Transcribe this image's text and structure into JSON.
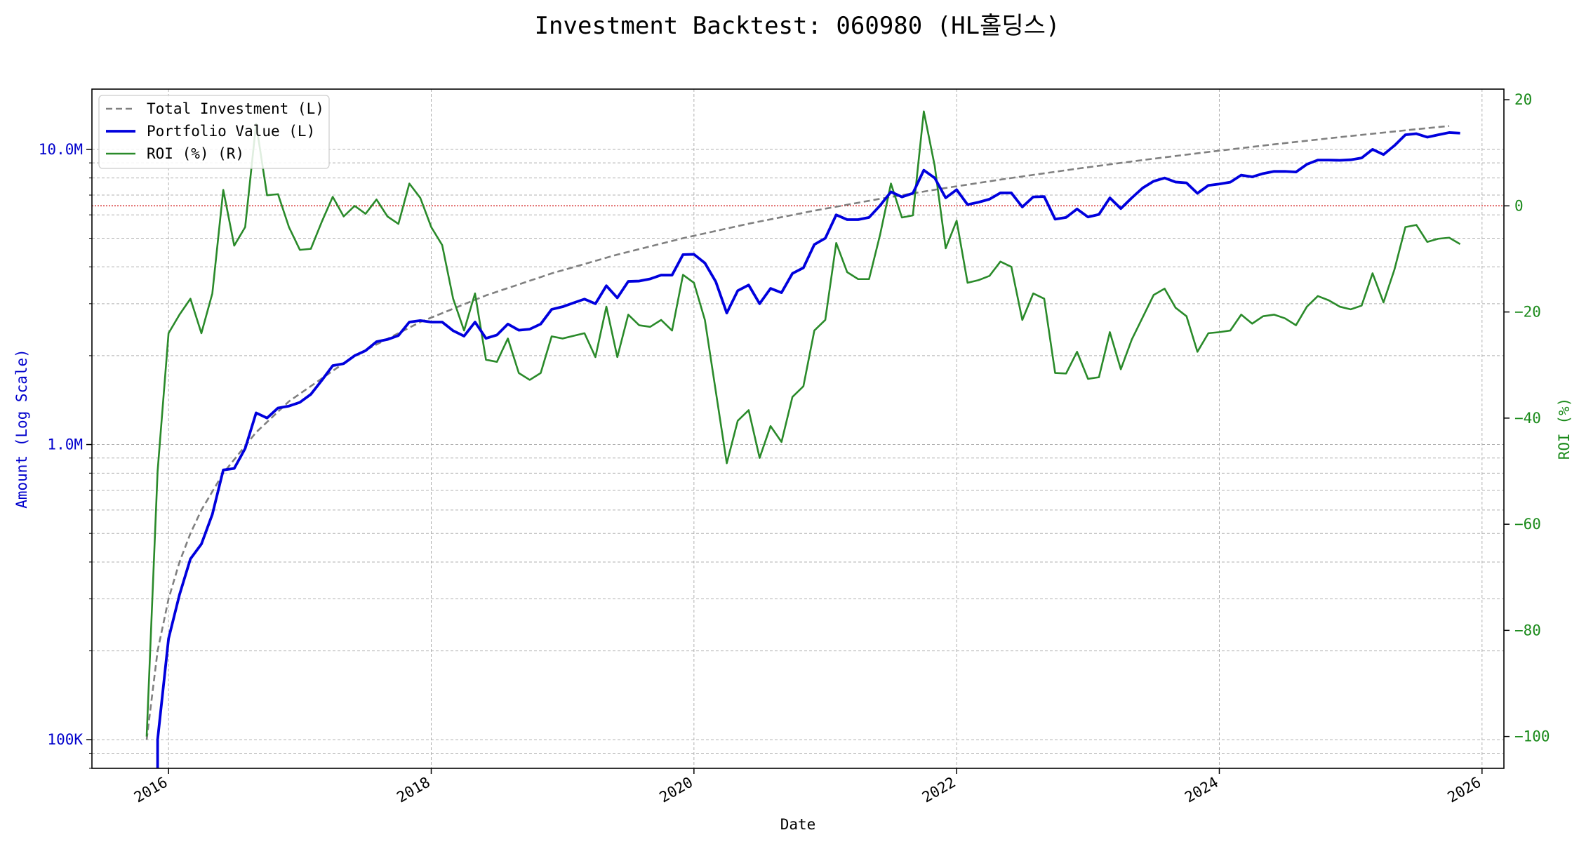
{
  "chart_data": {
    "type": "line",
    "title": "Investment Backtest: 060980 (HL홀딩스)",
    "xlabel": "Date",
    "ylabel_left": "Amount (Log Scale)",
    "ylabel_right": "ROI (%)",
    "x_range": [
      "2015-06-01",
      "2026-03-01"
    ],
    "x_ticks": [
      "2016",
      "2018",
      "2020",
      "2022",
      "2024",
      "2026"
    ],
    "y_left_scale": "log",
    "y_left_range": [
      80000,
      16000000
    ],
    "y_left_ticks": [
      {
        "value": 100000,
        "label": "100K"
      },
      {
        "value": 1000000,
        "label": "1.0M"
      },
      {
        "value": 10000000,
        "label": "10.0M"
      }
    ],
    "y_right_range": [
      -106,
      22
    ],
    "y_right_ticks": [
      20,
      0,
      -20,
      -40,
      -60,
      -80,
      -100
    ],
    "zero_line_roi": 0,
    "grid": true,
    "legend_placement": "upper-left",
    "colors": {
      "investment": "#808080",
      "portfolio": "#0000dd",
      "roi": "#2a8a2a",
      "zero_line": "#cc0000",
      "left_axis": "#0000cc",
      "right_axis": "#1a8a1a"
    },
    "legend": [
      {
        "series": "investment",
        "label": "Total Investment (L)"
      },
      {
        "series": "portfolio",
        "label": "Portfolio Value (L)"
      },
      {
        "series": "roi",
        "label": "ROI (%) (R)"
      }
    ],
    "series": [
      {
        "key": "investment",
        "name": "Total Investment (L)",
        "axis": "left",
        "style": "dashed",
        "points": [
          [
            "2015-11",
            100000
          ],
          [
            "2015-12",
            200000
          ],
          [
            "2016-01",
            300000
          ],
          [
            "2016-02",
            400000
          ],
          [
            "2016-03",
            500000
          ],
          [
            "2016-04",
            600000
          ],
          [
            "2016-06",
            800000
          ],
          [
            "2016-09",
            1100000
          ],
          [
            "2016-12",
            1400000
          ],
          [
            "2017-06",
            2000000
          ],
          [
            "2017-12",
            2600000
          ],
          [
            "2018-06",
            3200000
          ],
          [
            "2018-12",
            3800000
          ],
          [
            "2019-06",
            4400000
          ],
          [
            "2019-12",
            5000000
          ],
          [
            "2020-06",
            5600000
          ],
          [
            "2020-12",
            6200000
          ],
          [
            "2021-06",
            6800000
          ],
          [
            "2021-12",
            7400000
          ],
          [
            "2022-06",
            8000000
          ],
          [
            "2022-12",
            8600000
          ],
          [
            "2023-06",
            9200000
          ],
          [
            "2023-12",
            9800000
          ],
          [
            "2024-06",
            10400000
          ],
          [
            "2024-12",
            11000000
          ],
          [
            "2025-06",
            11600000
          ],
          [
            "2025-10",
            12000000
          ]
        ]
      },
      {
        "key": "portfolio",
        "name": "Portfolio Value (L)",
        "axis": "left",
        "style": "solid",
        "points": [
          [
            "2015-12",
            70000
          ],
          [
            "2015-12",
            100000
          ],
          [
            "2016-01",
            220000
          ],
          [
            "2016-02",
            310000
          ],
          [
            "2016-03",
            410000
          ],
          [
            "2016-04",
            460000
          ],
          [
            "2016-05",
            580000
          ],
          [
            "2016-06",
            820000
          ],
          [
            "2016-07",
            830000
          ],
          [
            "2016-08",
            970000
          ],
          [
            "2016-09",
            1280000
          ],
          [
            "2016-10",
            1230000
          ],
          [
            "2016-11",
            1330000
          ],
          [
            "2016-12",
            1350000
          ],
          [
            "2017-01",
            1390000
          ],
          [
            "2017-02",
            1480000
          ],
          [
            "2017-03",
            1650000
          ],
          [
            "2017-04",
            1850000
          ],
          [
            "2017-05",
            1880000
          ],
          [
            "2017-06",
            2000000
          ],
          [
            "2017-07",
            2080000
          ],
          [
            "2017-08",
            2230000
          ],
          [
            "2017-09",
            2270000
          ],
          [
            "2017-10",
            2340000
          ],
          [
            "2017-11",
            2600000
          ],
          [
            "2017-12",
            2630000
          ],
          [
            "2018-01",
            2600000
          ],
          [
            "2018-02",
            2600000
          ],
          [
            "2018-03",
            2430000
          ],
          [
            "2018-04",
            2330000
          ],
          [
            "2018-05",
            2600000
          ],
          [
            "2018-06",
            2290000
          ],
          [
            "2018-07",
            2350000
          ],
          [
            "2018-08",
            2560000
          ],
          [
            "2018-09",
            2440000
          ],
          [
            "2018-10",
            2460000
          ],
          [
            "2018-11",
            2560000
          ],
          [
            "2018-12",
            2870000
          ],
          [
            "2019-01",
            2930000
          ],
          [
            "2019-02",
            3020000
          ],
          [
            "2019-03",
            3110000
          ],
          [
            "2019-04",
            3000000
          ],
          [
            "2019-05",
            3450000
          ],
          [
            "2019-06",
            3140000
          ],
          [
            "2019-07",
            3570000
          ],
          [
            "2019-08",
            3580000
          ],
          [
            "2019-09",
            3640000
          ],
          [
            "2019-10",
            3750000
          ],
          [
            "2019-11",
            3750000
          ],
          [
            "2019-12",
            4400000
          ],
          [
            "2020-01",
            4410000
          ],
          [
            "2020-02",
            4120000
          ],
          [
            "2020-03",
            3560000
          ],
          [
            "2020-04",
            2790000
          ],
          [
            "2020-05",
            3320000
          ],
          [
            "2020-06",
            3470000
          ],
          [
            "2020-07",
            3000000
          ],
          [
            "2020-08",
            3380000
          ],
          [
            "2020-09",
            3270000
          ],
          [
            "2020-10",
            3800000
          ],
          [
            "2020-11",
            3970000
          ],
          [
            "2020-12",
            4760000
          ],
          [
            "2021-01",
            5000000
          ],
          [
            "2021-02",
            6000000
          ],
          [
            "2021-03",
            5780000
          ],
          [
            "2021-04",
            5780000
          ],
          [
            "2021-05",
            5880000
          ],
          [
            "2021-06",
            6450000
          ],
          [
            "2021-07",
            7180000
          ],
          [
            "2021-08",
            6900000
          ],
          [
            "2021-09",
            7100000
          ],
          [
            "2021-10",
            8500000
          ],
          [
            "2021-11",
            8000000
          ],
          [
            "2021-12",
            6850000
          ],
          [
            "2022-01",
            7300000
          ],
          [
            "2022-02",
            6500000
          ],
          [
            "2022-03",
            6620000
          ],
          [
            "2022-04",
            6780000
          ],
          [
            "2022-05",
            7120000
          ],
          [
            "2022-06",
            7120000
          ],
          [
            "2022-07",
            6380000
          ],
          [
            "2022-08",
            6900000
          ],
          [
            "2022-09",
            6920000
          ],
          [
            "2022-10",
            5800000
          ],
          [
            "2022-11",
            5880000
          ],
          [
            "2022-12",
            6280000
          ],
          [
            "2023-01",
            5900000
          ],
          [
            "2023-02",
            6020000
          ],
          [
            "2023-03",
            6850000
          ],
          [
            "2023-04",
            6300000
          ],
          [
            "2023-05",
            6850000
          ],
          [
            "2023-06",
            7400000
          ],
          [
            "2023-07",
            7800000
          ],
          [
            "2023-08",
            8000000
          ],
          [
            "2023-09",
            7750000
          ],
          [
            "2023-10",
            7700000
          ],
          [
            "2023-11",
            7100000
          ],
          [
            "2023-12",
            7550000
          ],
          [
            "2024-01",
            7630000
          ],
          [
            "2024-02",
            7740000
          ],
          [
            "2024-03",
            8180000
          ],
          [
            "2024-04",
            8070000
          ],
          [
            "2024-05",
            8280000
          ],
          [
            "2024-06",
            8420000
          ],
          [
            "2024-07",
            8420000
          ],
          [
            "2024-08",
            8380000
          ],
          [
            "2024-09",
            8900000
          ],
          [
            "2024-10",
            9200000
          ],
          [
            "2024-11",
            9200000
          ],
          [
            "2024-12",
            9180000
          ],
          [
            "2025-01",
            9220000
          ],
          [
            "2025-02",
            9350000
          ],
          [
            "2025-03",
            10000000
          ],
          [
            "2025-04",
            9600000
          ],
          [
            "2025-05",
            10300000
          ],
          [
            "2025-06",
            11200000
          ],
          [
            "2025-07",
            11300000
          ],
          [
            "2025-08",
            11000000
          ],
          [
            "2025-09",
            11200000
          ],
          [
            "2025-10",
            11400000
          ],
          [
            "2025-11",
            11350000
          ]
        ]
      },
      {
        "key": "roi",
        "name": "ROI (%) (R)",
        "axis": "right",
        "style": "solid",
        "points": [
          [
            "2015-11",
            -100
          ],
          [
            "2015-12",
            -50
          ],
          [
            "2016-01",
            -24
          ],
          [
            "2016-02",
            -20.5
          ],
          [
            "2016-03",
            -17.5
          ],
          [
            "2016-04",
            -24
          ],
          [
            "2016-05",
            -16.5
          ],
          [
            "2016-06",
            3
          ],
          [
            "2016-07",
            -7.5
          ],
          [
            "2016-08",
            -4
          ],
          [
            "2016-09",
            15.5
          ],
          [
            "2016-10",
            2
          ],
          [
            "2016-11",
            2.2
          ],
          [
            "2016-12",
            -4
          ],
          [
            "2017-01",
            -8.3
          ],
          [
            "2017-02",
            -8.1
          ],
          [
            "2017-03",
            -3
          ],
          [
            "2017-04",
            1.7
          ],
          [
            "2017-05",
            -2
          ],
          [
            "2017-06",
            0
          ],
          [
            "2017-07",
            -1.5
          ],
          [
            "2017-08",
            1.2
          ],
          [
            "2017-09",
            -2
          ],
          [
            "2017-10",
            -3.4
          ],
          [
            "2017-11",
            4.2
          ],
          [
            "2017-12",
            1.5
          ],
          [
            "2018-01",
            -4
          ],
          [
            "2018-02",
            -7.4
          ],
          [
            "2018-03",
            -17.5
          ],
          [
            "2018-04",
            -23.5
          ],
          [
            "2018-05",
            -16.5
          ],
          [
            "2018-06",
            -29
          ],
          [
            "2018-07",
            -29.4
          ],
          [
            "2018-08",
            -25
          ],
          [
            "2018-09",
            -31.5
          ],
          [
            "2018-10",
            -32.8
          ],
          [
            "2018-11",
            -31.5
          ],
          [
            "2018-12",
            -24.6
          ],
          [
            "2019-01",
            -25
          ],
          [
            "2019-02",
            -24.5
          ],
          [
            "2019-03",
            -24
          ],
          [
            "2019-04",
            -28.5
          ],
          [
            "2019-05",
            -19
          ],
          [
            "2019-06",
            -28.5
          ],
          [
            "2019-07",
            -20.5
          ],
          [
            "2019-08",
            -22.5
          ],
          [
            "2019-09",
            -22.8
          ],
          [
            "2019-10",
            -21.5
          ],
          [
            "2019-11",
            -23.5
          ],
          [
            "2019-12",
            -13
          ],
          [
            "2020-01",
            -14.5
          ],
          [
            "2020-02",
            -21.5
          ],
          [
            "2020-03",
            -35
          ],
          [
            "2020-04",
            -48.5
          ],
          [
            "2020-05",
            -40.5
          ],
          [
            "2020-06",
            -38.5
          ],
          [
            "2020-07",
            -47.5
          ],
          [
            "2020-08",
            -41.5
          ],
          [
            "2020-09",
            -44.5
          ],
          [
            "2020-10",
            -36
          ],
          [
            "2020-11",
            -34
          ],
          [
            "2020-12",
            -23.5
          ],
          [
            "2021-01",
            -21.5
          ],
          [
            "2021-02",
            -7
          ],
          [
            "2021-03",
            -12.5
          ],
          [
            "2021-04",
            -13.8
          ],
          [
            "2021-05",
            -13.8
          ],
          [
            "2021-06",
            -5.5
          ],
          [
            "2021-07",
            4.2
          ],
          [
            "2021-08",
            -2.2
          ],
          [
            "2021-09",
            -1.8
          ],
          [
            "2021-10",
            17.8
          ],
          [
            "2021-11",
            7.5
          ],
          [
            "2021-12",
            -8
          ],
          [
            "2022-01",
            -2.8
          ],
          [
            "2022-02",
            -14.5
          ],
          [
            "2022-03",
            -14
          ],
          [
            "2022-04",
            -13.2
          ],
          [
            "2022-05",
            -10.5
          ],
          [
            "2022-06",
            -11.5
          ],
          [
            "2022-07",
            -21.5
          ],
          [
            "2022-08",
            -16.5
          ],
          [
            "2022-09",
            -17.5
          ],
          [
            "2022-10",
            -31.5
          ],
          [
            "2022-11",
            -31.6
          ],
          [
            "2022-12",
            -27.5
          ],
          [
            "2023-01",
            -32.6
          ],
          [
            "2023-02",
            -32.3
          ],
          [
            "2023-03",
            -23.8
          ],
          [
            "2023-04",
            -30.8
          ],
          [
            "2023-05",
            -25.2
          ],
          [
            "2023-06",
            -21
          ],
          [
            "2023-07",
            -16.8
          ],
          [
            "2023-08",
            -15.6
          ],
          [
            "2023-09",
            -19.2
          ],
          [
            "2023-10",
            -20.8
          ],
          [
            "2023-11",
            -27.5
          ],
          [
            "2023-12",
            -24
          ],
          [
            "2024-01",
            -23.8
          ],
          [
            "2024-02",
            -23.5
          ],
          [
            "2024-03",
            -20.5
          ],
          [
            "2024-04",
            -22.2
          ],
          [
            "2024-05",
            -20.8
          ],
          [
            "2024-06",
            -20.5
          ],
          [
            "2024-07",
            -21.2
          ],
          [
            "2024-08",
            -22.5
          ],
          [
            "2024-09",
            -19
          ],
          [
            "2024-10",
            -17
          ],
          [
            "2024-11",
            -17.8
          ],
          [
            "2024-12",
            -19
          ],
          [
            "2025-01",
            -19.5
          ],
          [
            "2025-02",
            -18.8
          ],
          [
            "2025-03",
            -12.7
          ],
          [
            "2025-04",
            -18.2
          ],
          [
            "2025-05",
            -12
          ],
          [
            "2025-06",
            -4
          ],
          [
            "2025-07",
            -3.6
          ],
          [
            "2025-08",
            -6.8
          ],
          [
            "2025-09",
            -6.2
          ],
          [
            "2025-10",
            -6
          ],
          [
            "2025-11",
            -7.2
          ]
        ]
      }
    ]
  }
}
